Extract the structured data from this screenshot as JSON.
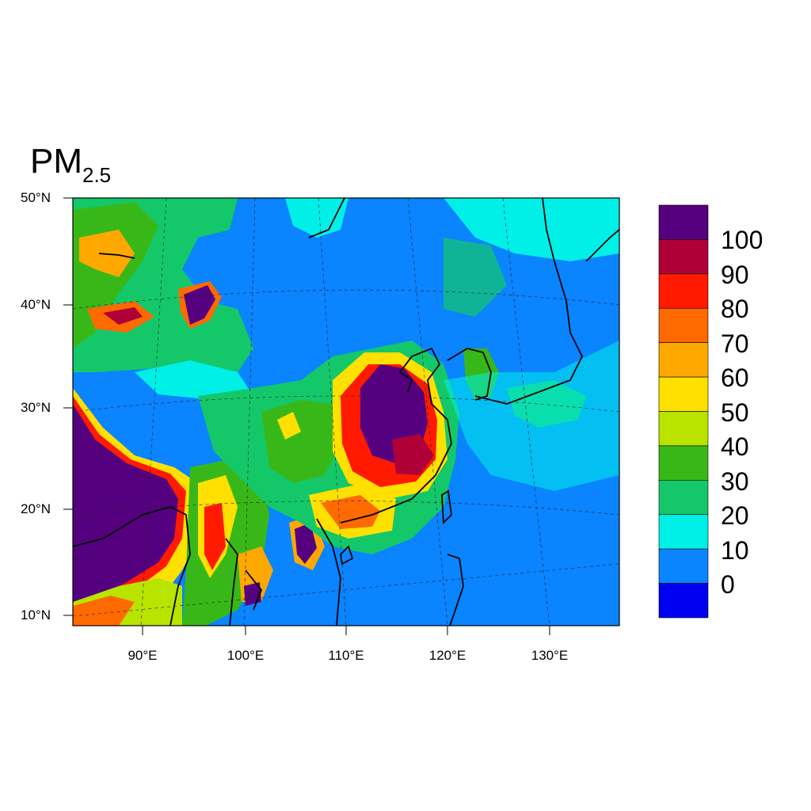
{
  "title": {
    "main": "PM",
    "subscript": "2.5"
  },
  "axes": {
    "lat_labels": [
      "50°N",
      "40°N",
      "30°N",
      "20°N",
      "10°N"
    ],
    "lon_labels": [
      "90°E",
      "100°E",
      "110°E",
      "120°E",
      "130°E"
    ]
  },
  "colorbar": {
    "labels": [
      "100",
      "90",
      "80",
      "70",
      "60",
      "50",
      "40",
      "30",
      "20",
      "10",
      "0"
    ],
    "colors": [
      "#54007f",
      "#b00038",
      "#ff1a00",
      "#ff6a00",
      "#ffa800",
      "#ffe000",
      "#b8e400",
      "#38b818",
      "#14c86a",
      "#00f0e8",
      "#0a84ff",
      "#0000f0"
    ]
  },
  "legend_colors": {
    "ocean_low": "#0a84ff",
    "coast_line": "#000000"
  }
}
